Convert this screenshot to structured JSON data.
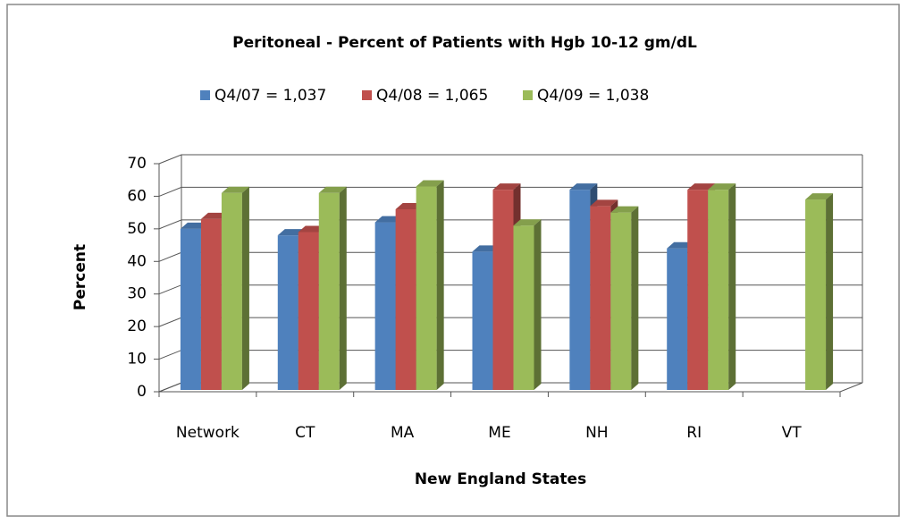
{
  "chart_data": {
    "type": "bar3d",
    "title": "Peritoneal - Percent of Patients with Hgb 10-12 gm/dL",
    "x_label": "New England States",
    "y_label": "Percent",
    "categories": [
      "Network",
      "CT",
      "MA",
      "ME",
      "NH",
      "RI",
      "VT"
    ],
    "series": [
      {
        "name": "Q4/07 = 1,037",
        "color": "#4f81bd",
        "values": [
          50,
          48,
          52,
          43,
          62,
          44,
          null
        ]
      },
      {
        "name": "Q4/08 = 1,065",
        "color": "#c0504d",
        "values": [
          53,
          49,
          56,
          62,
          57,
          62,
          null
        ]
      },
      {
        "name": "Q4/09 = 1,038",
        "color": "#9bbb59",
        "values": [
          61,
          61,
          63,
          51,
          55,
          62,
          59
        ]
      }
    ],
    "ylim": [
      0,
      70
    ],
    "yticks": [
      0,
      10,
      20,
      30,
      40,
      50,
      60,
      70
    ],
    "grid": true,
    "legend": "top"
  }
}
